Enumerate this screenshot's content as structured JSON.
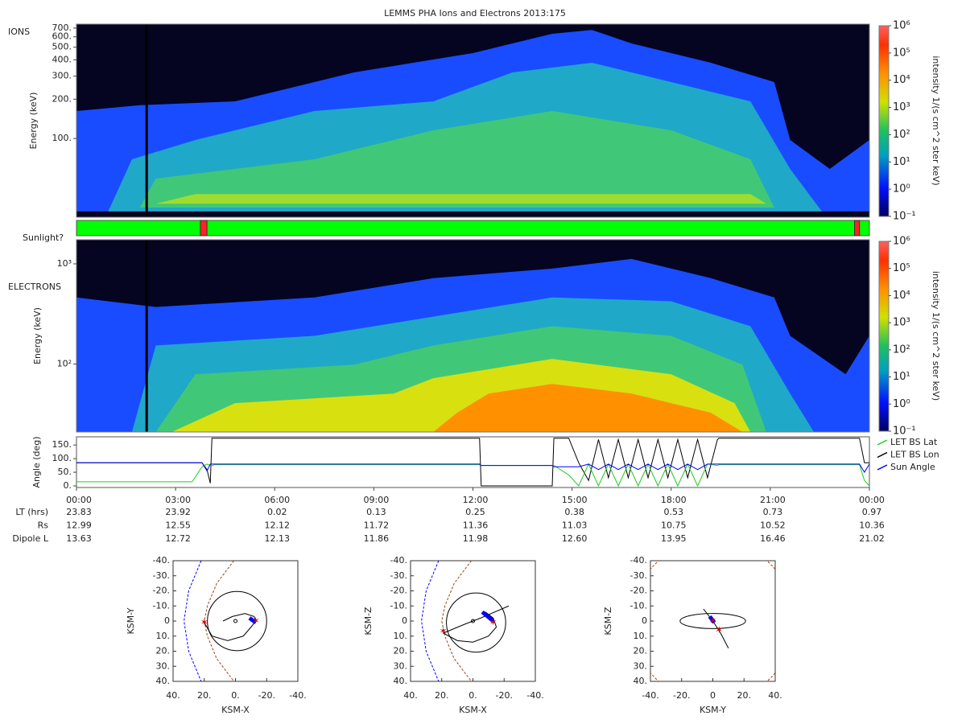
{
  "title": "LEMMS PHA Ions and Electrons  2013:175",
  "chart_data": [
    {
      "type": "spectrogram",
      "panel_label": "IONS",
      "ylabel": "Energy (keV)",
      "log_y": true,
      "ylim": [
        25,
        750
      ],
      "yticks": [
        {
          "value": 100,
          "label": "100."
        },
        {
          "value": 200,
          "label": "200."
        },
        {
          "value": 300,
          "label": "300."
        },
        {
          "value": 400,
          "label": "400."
        },
        {
          "value": 500,
          "label": "500."
        },
        {
          "value": 600,
          "label": "600."
        },
        {
          "value": 700,
          "label": "700."
        }
      ],
      "colorbar": {
        "label": "intensity 1/(s cm^2 ster keV)",
        "log": true,
        "clim": [
          0.1,
          1000000
        ],
        "ticks": [
          {
            "value": 0.1,
            "label": "10⁻¹"
          },
          {
            "value": 1,
            "label": "10⁰"
          },
          {
            "value": 10,
            "label": "10¹"
          },
          {
            "value": 100,
            "label": "10²"
          },
          {
            "value": 1000,
            "label": "10³"
          },
          {
            "value": 10000,
            "label": "10⁴"
          },
          {
            "value": 100000,
            "label": "10⁵"
          },
          {
            "value": 1000000,
            "label": "10⁶"
          }
        ]
      }
    },
    {
      "type": "status",
      "label": "Sunlight?",
      "xlim": [
        0,
        24
      ],
      "color": "#00ff00",
      "interval_color": "#ff2020",
      "intervals": [
        [
          3.75,
          3.95
        ],
        [
          23.55,
          23.7
        ]
      ]
    },
    {
      "type": "spectrogram",
      "panel_label": "ELECTRONS",
      "ylabel": "Energy (keV)",
      "log_y": true,
      "ylim": [
        21,
        1740
      ],
      "yticks": [
        {
          "value": 100,
          "label": "10²"
        },
        {
          "value": 1000,
          "label": "10³"
        }
      ],
      "colorbar": {
        "label": "intensity 1/(s cm^2 ster keV)",
        "log": true,
        "clim": [
          0.1,
          1000000
        ],
        "ticks": [
          {
            "value": 0.1,
            "label": "10⁻¹"
          },
          {
            "value": 1,
            "label": "10⁰"
          },
          {
            "value": 10,
            "label": "10¹"
          },
          {
            "value": 100,
            "label": "10²"
          },
          {
            "value": 1000,
            "label": "10³"
          },
          {
            "value": 10000,
            "label": "10⁴"
          },
          {
            "value": 100000,
            "label": "10⁵"
          },
          {
            "value": 1000000,
            "label": "10⁶"
          }
        ]
      }
    },
    {
      "type": "line",
      "ylabel": "Angle (deg)",
      "xlim": [
        0,
        24
      ],
      "ylim": [
        0,
        180
      ],
      "legend": "right",
      "yticks": [
        {
          "value": 0,
          "label": "0."
        },
        {
          "value": 50,
          "label": "50."
        },
        {
          "value": 100,
          "label": "100."
        },
        {
          "value": 150,
          "label": "150."
        }
      ],
      "xticks": [
        {
          "value": 0,
          "label": "00:00"
        },
        {
          "value": 3,
          "label": "03:00"
        },
        {
          "value": 6,
          "label": "06:00"
        },
        {
          "value": 9,
          "label": "09:00"
        },
        {
          "value": 12,
          "label": "12:00"
        },
        {
          "value": 15,
          "label": "15:00"
        },
        {
          "value": 18,
          "label": "18:00"
        },
        {
          "value": 21,
          "label": "21:00"
        },
        {
          "value": 24,
          "label": "00:00"
        }
      ],
      "x": [
        0,
        3.5,
        3.8,
        3.95,
        4.05,
        4.1,
        4.2,
        12.2,
        12.25,
        14.4,
        14.45,
        14.9,
        15.2,
        15.5,
        15.8,
        16.1,
        16.4,
        16.7,
        17.0,
        17.3,
        17.6,
        17.9,
        18.2,
        18.5,
        18.8,
        19.1,
        19.4,
        19.45,
        23.7,
        23.85,
        24
      ],
      "series": [
        {
          "name": "LET BS Lat",
          "color": "#22cc22",
          "values": [
            15,
            15,
            70,
            80,
            75,
            75,
            78,
            78,
            75,
            75,
            75,
            40,
            0,
            80,
            0,
            80,
            0,
            80,
            0,
            80,
            0,
            80,
            0,
            80,
            0,
            80,
            75,
            78,
            78,
            20,
            0
          ]
        },
        {
          "name": "LET BS Lon",
          "color": "#000000",
          "values": [
            85,
            85,
            85,
            60,
            10,
            175,
            175,
            175,
            0,
            0,
            175,
            175,
            85,
            20,
            170,
            30,
            170,
            30,
            170,
            30,
            170,
            30,
            170,
            30,
            170,
            30,
            170,
            175,
            175,
            85,
            85
          ]
        },
        {
          "name": "Sun Angle",
          "color": "#0000ff",
          "values": [
            85,
            85,
            85,
            55,
            80,
            80,
            80,
            80,
            75,
            75,
            70,
            70,
            70,
            80,
            60,
            80,
            60,
            80,
            60,
            80,
            60,
            80,
            60,
            80,
            60,
            80,
            80,
            80,
            80,
            50,
            80
          ]
        }
      ],
      "ephemeris": [
        {
          "label": "LT (hrs)",
          "values": [
            "23.83",
            "23.92",
            "0.02",
            "0.13",
            "0.25",
            "0.38",
            "0.53",
            "0.73",
            "0.97"
          ]
        },
        {
          "label": "Rs",
          "values": [
            "12.99",
            "12.55",
            "12.12",
            "11.72",
            "11.36",
            "11.03",
            "10.75",
            "10.52",
            "10.36"
          ]
        },
        {
          "label": "Dipole L",
          "values": [
            "13.63",
            "12.72",
            "12.13",
            "11.86",
            "11.98",
            "12.60",
            "13.95",
            "16.46",
            "21.02"
          ]
        }
      ]
    },
    {
      "type": "orbit",
      "xlabel": "KSM-X",
      "ylabel": "KSM-Y",
      "xlim": [
        40,
        -40
      ],
      "ylim": [
        -40,
        40
      ],
      "xticks": [
        {
          "value": 40,
          "label": "40."
        },
        {
          "value": 20,
          "label": "20."
        },
        {
          "value": 0,
          "label": "0."
        },
        {
          "value": -20,
          "label": "-20."
        },
        {
          "value": -40,
          "label": "-40."
        }
      ],
      "yticks": [
        {
          "value": -40,
          "label": "-40."
        },
        {
          "value": -30,
          "label": "-30."
        },
        {
          "value": -20,
          "label": "-20."
        },
        {
          "value": -10,
          "label": "-10."
        },
        0,
        {
          "value": 10,
          "label": "10."
        },
        {
          "value": 20,
          "label": "20."
        },
        {
          "value": 30,
          "label": "30."
        },
        {
          "value": 40,
          "label": "40."
        }
      ]
    },
    {
      "type": "orbit",
      "xlabel": "KSM-X",
      "ylabel": "KSM-Z",
      "xlim": [
        40,
        -40
      ],
      "ylim": [
        -40,
        40
      ],
      "xticks": [
        {
          "value": 40,
          "label": "40."
        },
        {
          "value": 20,
          "label": "20."
        },
        {
          "value": 0,
          "label": "0."
        },
        {
          "value": -20,
          "label": "-20."
        },
        {
          "value": -40,
          "label": "-40."
        }
      ],
      "yticks": [
        {
          "value": -40,
          "label": "-40."
        },
        {
          "value": -30,
          "label": "-30."
        },
        {
          "value": -20,
          "label": "-20."
        },
        {
          "value": -10,
          "label": "-10."
        },
        0,
        {
          "value": 10,
          "label": "10."
        },
        {
          "value": 20,
          "label": "20."
        },
        {
          "value": 30,
          "label": "30."
        },
        {
          "value": 40,
          "label": "40."
        }
      ]
    },
    {
      "type": "orbit",
      "xlabel": "KSM-Y",
      "ylabel": "KSM-Z",
      "xlim": [
        -40,
        40
      ],
      "ylim": [
        -40,
        40
      ],
      "xticks": [
        {
          "value": -40,
          "label": "-40."
        },
        {
          "value": -20,
          "label": "-20."
        },
        0,
        {
          "value": 20,
          "label": "20."
        },
        {
          "value": 40,
          "label": "40."
        }
      ],
      "yticks": [
        {
          "value": -40,
          "label": "-40."
        },
        {
          "value": -30,
          "label": "-30."
        },
        {
          "value": -20,
          "label": "-20."
        },
        {
          "value": -10,
          "label": "-10."
        },
        0,
        {
          "value": 10,
          "label": "10."
        },
        {
          "value": 20,
          "label": "20."
        },
        {
          "value": 30,
          "label": "30."
        },
        {
          "value": 40,
          "label": "40."
        }
      ]
    }
  ]
}
